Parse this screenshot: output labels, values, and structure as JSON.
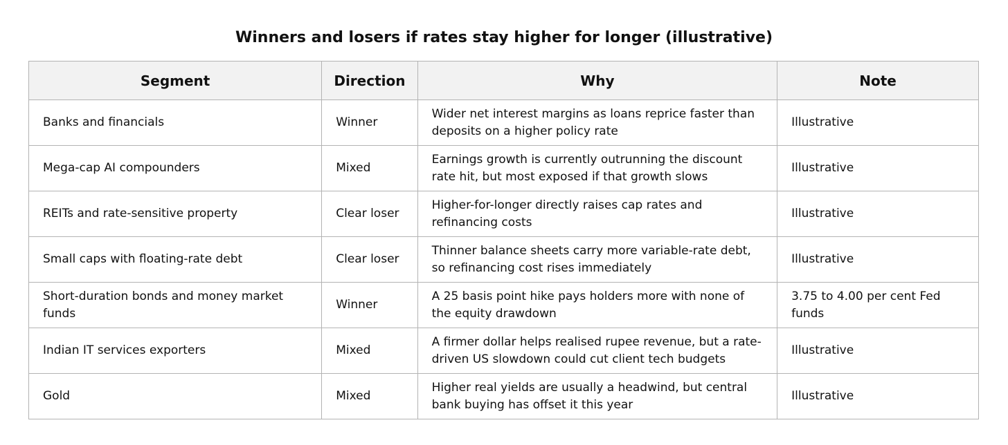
{
  "title": "Winners and losers if rates stay higher for longer (illustrative)",
  "table": {
    "headers": {
      "segment": "Segment",
      "direction": "Direction",
      "why": "Why",
      "note": "Note"
    },
    "rows": [
      {
        "segment": "Banks and financials",
        "direction": "Winner",
        "why": "Wider net interest margins as loans reprice faster than deposits on a higher policy rate",
        "note": "Illustrative"
      },
      {
        "segment": "Mega-cap AI compounders",
        "direction": "Mixed",
        "why": "Earnings growth is currently outrunning the discount rate hit, but most exposed if that growth slows",
        "note": "Illustrative"
      },
      {
        "segment": "REITs and rate-sensitive property",
        "direction": "Clear loser",
        "why": "Higher-for-longer directly raises cap rates and refinancing costs",
        "note": "Illustrative"
      },
      {
        "segment": "Small caps with floating-rate debt",
        "direction": "Clear loser",
        "why": "Thinner balance sheets carry more variable-rate debt, so refinancing cost rises immediately",
        "note": "Illustrative"
      },
      {
        "segment": "Short-duration bonds and money market funds",
        "direction": "Winner",
        "why": "A 25 basis point hike pays holders more with none of the equity drawdown",
        "note": "3.75 to 4.00 per cent Fed funds"
      },
      {
        "segment": "Indian IT services exporters",
        "direction": "Mixed",
        "why": "A firmer dollar helps realised rupee revenue, but a rate-driven US slowdown could cut client tech budgets",
        "note": "Illustrative"
      },
      {
        "segment": "Gold",
        "direction": "Mixed",
        "why": "Higher real yields are usually a headwind, but central bank buying has offset it this year",
        "note": "Illustrative"
      }
    ]
  }
}
